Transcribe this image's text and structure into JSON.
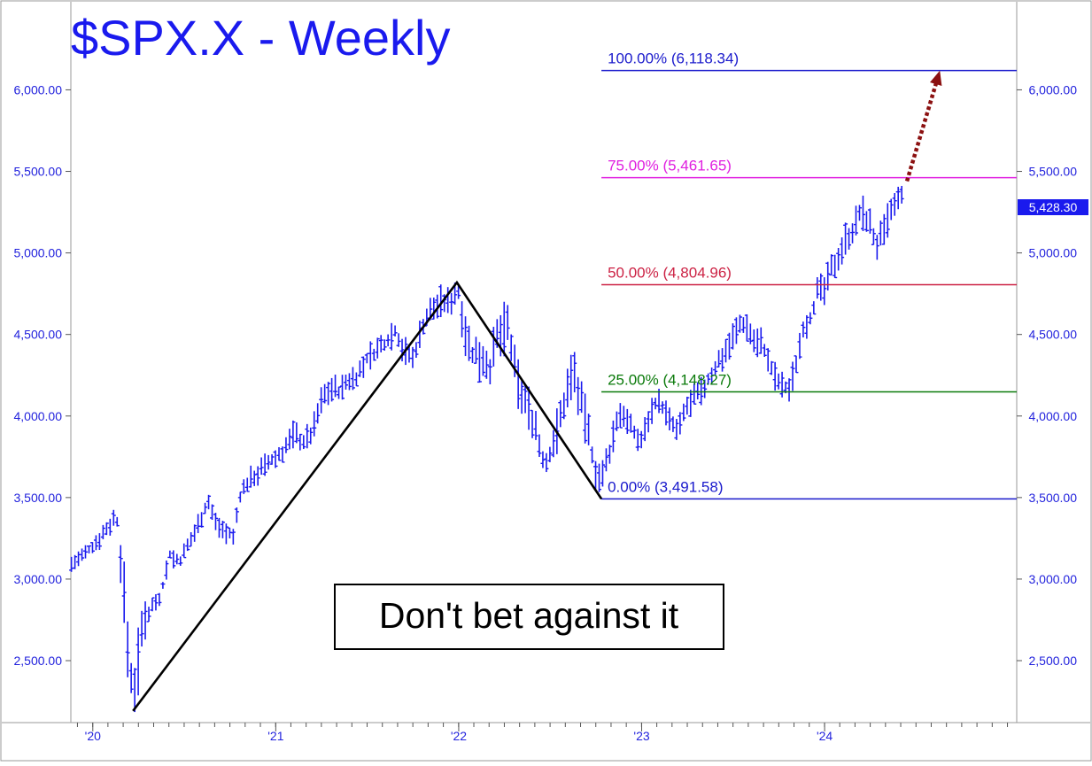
{
  "chart_data": {
    "type": "bar",
    "title": "$SPX.X - Weekly",
    "annotation": "Don't bet against it",
    "last_price": "5,428.30",
    "y_range": [
      2120,
      6540
    ],
    "y_ticks": [
      {
        "value": 2500,
        "label": "2,500.00"
      },
      {
        "value": 3000,
        "label": "3,000.00"
      },
      {
        "value": 3500,
        "label": "3,500.00"
      },
      {
        "value": 4000,
        "label": "4,000.00"
      },
      {
        "value": 4500,
        "label": "4,500.00"
      },
      {
        "value": 5000,
        "label": "5,000.00"
      },
      {
        "value": 5500,
        "label": "5,500.00"
      },
      {
        "value": 6000,
        "label": "6,000.00"
      }
    ],
    "x_range": [
      2019.88,
      2025.05
    ],
    "x_ticks": [
      {
        "value": 2020,
        "label": "'20"
      },
      {
        "value": 2021,
        "label": "'21"
      },
      {
        "value": 2022,
        "label": "'22"
      },
      {
        "value": 2023,
        "label": "'23"
      },
      {
        "value": 2024,
        "label": "'24"
      }
    ],
    "fib_levels": [
      {
        "level": 0.0,
        "label": "0.00% (3,491.58)",
        "value": 3491.58,
        "color": "#1a1acc"
      },
      {
        "level": 0.25,
        "label": "25.00% (4,148.27)",
        "value": 4148.27,
        "color": "#0a7a0a"
      },
      {
        "level": 0.5,
        "label": "50.00% (4,804.96)",
        "value": 4804.96,
        "color": "#cc2244"
      },
      {
        "level": 0.75,
        "label": "75.00% (5,461.65)",
        "value": 5461.65,
        "color": "#e020e0"
      },
      {
        "level": 1.0,
        "label": "100.00% (6,118.34)",
        "value": 6118.34,
        "color": "#1a1acc"
      }
    ],
    "fib_start": 2022.78,
    "pattern_points": [
      {
        "x": 2020.22,
        "y": 2191.86
      },
      {
        "x": 2021.99,
        "y": 4818.62
      },
      {
        "x": 2022.78,
        "y": 3491.58
      }
    ],
    "projection": {
      "from": {
        "x": 2024.45,
        "y": 5440
      },
      "to": {
        "x": 2024.63,
        "y": 6118.34
      }
    },
    "price_path": [
      [
        2019.88,
        3090
      ],
      [
        2019.95,
        3140
      ],
      [
        2020.02,
        3230
      ],
      [
        2020.09,
        3330
      ],
      [
        2020.12,
        3380
      ],
      [
        2020.14,
        3340
      ],
      [
        2020.16,
        3000
      ],
      [
        2020.18,
        2750
      ],
      [
        2020.2,
        2480
      ],
      [
        2020.22,
        2300
      ],
      [
        2020.25,
        2500
      ],
      [
        2020.28,
        2750
      ],
      [
        2020.33,
        2850
      ],
      [
        2020.37,
        2900
      ],
      [
        2020.42,
        3150
      ],
      [
        2020.47,
        3100
      ],
      [
        2020.52,
        3200
      ],
      [
        2020.58,
        3350
      ],
      [
        2020.63,
        3480
      ],
      [
        2020.67,
        3350
      ],
      [
        2020.72,
        3300
      ],
      [
        2020.77,
        3250
      ],
      [
        2020.8,
        3500
      ],
      [
        2020.85,
        3600
      ],
      [
        2020.9,
        3650
      ],
      [
        2020.95,
        3700
      ],
      [
        2021.0,
        3740
      ],
      [
        2021.05,
        3800
      ],
      [
        2021.1,
        3900
      ],
      [
        2021.15,
        3840
      ],
      [
        2021.2,
        3900
      ],
      [
        2021.25,
        4100
      ],
      [
        2021.3,
        4180
      ],
      [
        2021.35,
        4150
      ],
      [
        2021.4,
        4220
      ],
      [
        2021.45,
        4250
      ],
      [
        2021.5,
        4350
      ],
      [
        2021.55,
        4400
      ],
      [
        2021.6,
        4450
      ],
      [
        2021.65,
        4530
      ],
      [
        2021.7,
        4400
      ],
      [
        2021.75,
        4350
      ],
      [
        2021.8,
        4550
      ],
      [
        2021.85,
        4650
      ],
      [
        2021.9,
        4700
      ],
      [
        2021.95,
        4690
      ],
      [
        2021.99,
        4790
      ],
      [
        2022.02,
        4650
      ],
      [
        2022.05,
        4450
      ],
      [
        2022.08,
        4350
      ],
      [
        2022.12,
        4380
      ],
      [
        2022.17,
        4300
      ],
      [
        2022.22,
        4500
      ],
      [
        2022.27,
        4550
      ],
      [
        2022.3,
        4300
      ],
      [
        2022.34,
        4150
      ],
      [
        2022.38,
        4050
      ],
      [
        2022.42,
        3950
      ],
      [
        2022.45,
        3750
      ],
      [
        2022.48,
        3700
      ],
      [
        2022.52,
        3850
      ],
      [
        2022.56,
        4000
      ],
      [
        2022.6,
        4200
      ],
      [
        2022.63,
        4300
      ],
      [
        2022.66,
        4100
      ],
      [
        2022.7,
        3950
      ],
      [
        2022.74,
        3700
      ],
      [
        2022.78,
        3590
      ],
      [
        2022.82,
        3750
      ],
      [
        2022.86,
        3950
      ],
      [
        2022.9,
        4030
      ],
      [
        2022.95,
        3900
      ],
      [
        2023.0,
        3850
      ],
      [
        2023.04,
        4000
      ],
      [
        2023.08,
        4100
      ],
      [
        2023.12,
        4050
      ],
      [
        2023.16,
        3950
      ],
      [
        2023.2,
        3900
      ],
      [
        2023.24,
        4050
      ],
      [
        2023.28,
        4100
      ],
      [
        2023.33,
        4150
      ],
      [
        2023.38,
        4250
      ],
      [
        2023.43,
        4350
      ],
      [
        2023.48,
        4450
      ],
      [
        2023.53,
        4550
      ],
      [
        2023.57,
        4570
      ],
      [
        2023.61,
        4470
      ],
      [
        2023.66,
        4450
      ],
      [
        2023.7,
        4300
      ],
      [
        2023.75,
        4200
      ],
      [
        2023.8,
        4150
      ],
      [
        2023.84,
        4300
      ],
      [
        2023.88,
        4550
      ],
      [
        2023.92,
        4600
      ],
      [
        2023.96,
        4750
      ],
      [
        2024.0,
        4780
      ],
      [
        2024.04,
        4900
      ],
      [
        2024.08,
        5000
      ],
      [
        2024.12,
        5100
      ],
      [
        2024.16,
        5150
      ],
      [
        2024.2,
        5250
      ],
      [
        2024.24,
        5200
      ],
      [
        2024.28,
        5050
      ],
      [
        2024.32,
        5100
      ],
      [
        2024.36,
        5250
      ],
      [
        2024.4,
        5300
      ],
      [
        2024.44,
        5428
      ]
    ]
  }
}
